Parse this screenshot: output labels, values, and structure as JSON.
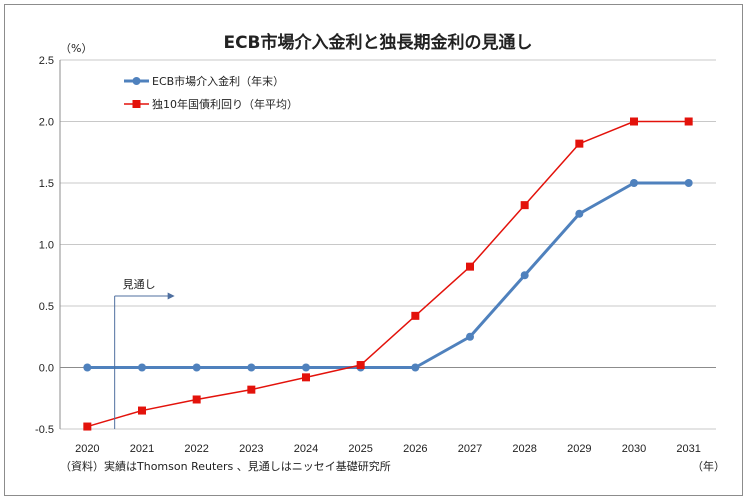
{
  "chart_data": {
    "type": "line",
    "title": "ECB市場介入金利と独長期金利の見通し",
    "y_unit_label": "（%）",
    "x_unit_label": "（年）",
    "categories": [
      "2020",
      "2021",
      "2022",
      "2023",
      "2024",
      "2025",
      "2026",
      "2027",
      "2028",
      "2029",
      "2030",
      "2031"
    ],
    "ylim": [
      -0.5,
      2.5
    ],
    "yticks": [
      "2.5",
      "2.0",
      "1.5",
      "1.0",
      "0.5",
      "0.0",
      "-0.5"
    ],
    "ytick_values": [
      2.5,
      2.0,
      1.5,
      1.0,
      0.5,
      0.0,
      -0.5
    ],
    "grid": true,
    "legend_placement": "top-left",
    "series": [
      {
        "name": "ECB市場介入金利（年末）",
        "color": "#4f81bd",
        "marker": "circle",
        "values": [
          0.0,
          0.0,
          0.0,
          0.0,
          0.0,
          0.0,
          0.0,
          0.25,
          0.75,
          1.25,
          1.5,
          1.5
        ]
      },
      {
        "name": "独10年国債利回り（年平均）",
        "color": "#e3120b",
        "marker": "square",
        "values": [
          -0.48,
          -0.35,
          -0.26,
          -0.18,
          -0.08,
          0.02,
          0.42,
          0.82,
          1.32,
          1.82,
          2.0,
          2.0
        ]
      }
    ],
    "annotation": {
      "text": "見通し",
      "at": "2020"
    },
    "source_note": "（資料）実績はThomson Reuters 、見通しはニッセイ基礎研究所"
  }
}
